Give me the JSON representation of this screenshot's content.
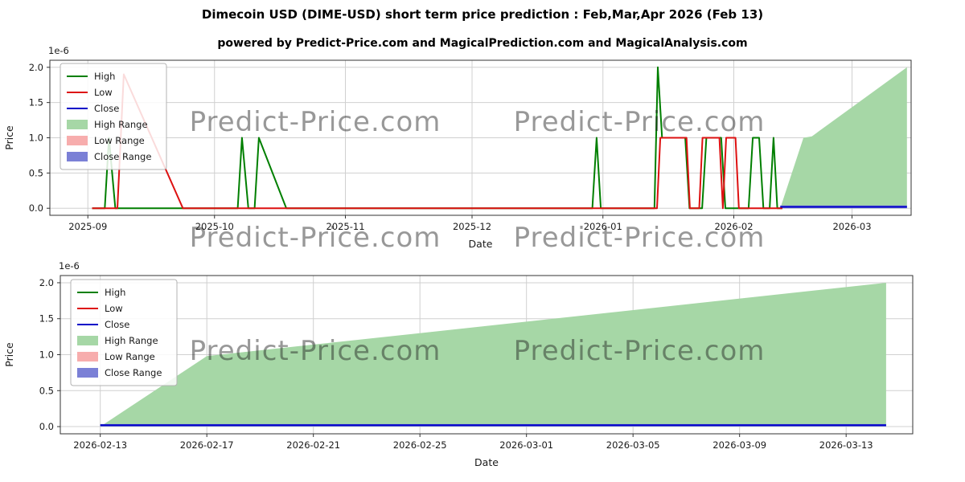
{
  "page": {
    "title": "Dimecoin USD (DIME-USD) short term price prediction : Feb,Mar,Apr 2026 (Feb 13)",
    "subtitle": "powered by Predict-Price.com and MagicalPrediction.com and MagicalAnalysis.com",
    "watermark": "Predict-Price.com"
  },
  "colors": {
    "high": "#007f00",
    "low": "#dd1111",
    "close": "#0000c8",
    "high_range": "#a6d7a6",
    "low_range": "#f7adad",
    "close_range": "#7b80d6",
    "grid": "#d0d0d0",
    "spine": "#333333",
    "watermark": "#9a9a9a"
  },
  "chart_data": [
    {
      "type": "line",
      "name": "history-and-prediction",
      "x_encoding": "days since 2025-08-23",
      "y_unit": "1e-6 USD",
      "xlabel": "Date",
      "ylabel": "Price",
      "offset_text": "1e-6",
      "grid": true,
      "legend_position": "upper left",
      "xlim": [
        0,
        204
      ],
      "ylim": [
        -0.1,
        2.1
      ],
      "yticks": [
        0,
        0.5,
        1,
        1.5,
        2
      ],
      "ytick_labels": [
        "0.0",
        "0.5",
        "1.0",
        "1.5",
        "2.0"
      ],
      "xticks": [
        {
          "v": 9,
          "label": "2025-09"
        },
        {
          "v": 39,
          "label": "2025-10"
        },
        {
          "v": 70,
          "label": "2025-11"
        },
        {
          "v": 100,
          "label": "2025-12"
        },
        {
          "v": 131,
          "label": "2026-01"
        },
        {
          "v": 162,
          "label": "2026-02"
        },
        {
          "v": 190,
          "label": "2026-03"
        }
      ],
      "legend": [
        "High",
        "Low",
        "Close",
        "High Range",
        "Low Range",
        "Close Range"
      ],
      "series": [
        {
          "name": "High",
          "kind": "line",
          "color": "high",
          "points": [
            [
              10,
              0
            ],
            [
              13,
              0
            ],
            [
              14,
              1
            ],
            [
              15.5,
              0
            ],
            [
              44.5,
              0
            ],
            [
              45.5,
              1
            ],
            [
              47,
              0
            ],
            [
              48.5,
              0
            ],
            [
              49.5,
              1
            ],
            [
              56,
              0
            ],
            [
              128.5,
              0
            ],
            [
              129.5,
              1
            ],
            [
              130.5,
              0
            ],
            [
              143.2,
              0
            ],
            [
              144,
              2
            ],
            [
              145,
              1
            ],
            [
              150.5,
              1
            ],
            [
              151.5,
              0
            ],
            [
              154.5,
              0
            ],
            [
              155.5,
              1
            ],
            [
              159,
              1
            ],
            [
              160,
              0
            ],
            [
              165.5,
              0
            ],
            [
              166.5,
              1
            ],
            [
              168,
              1
            ],
            [
              169,
              0
            ],
            [
              170.5,
              0
            ],
            [
              171.4,
              1
            ],
            [
              172.3,
              0
            ],
            [
              173.5,
              0
            ]
          ]
        },
        {
          "name": "Low",
          "kind": "line",
          "color": "low",
          "points": [
            [
              10,
              0
            ],
            [
              16,
              0
            ],
            [
              17.5,
              1.9
            ],
            [
              31.5,
              0
            ],
            [
              143.8,
              0
            ],
            [
              144.6,
              1
            ],
            [
              150.8,
              1
            ],
            [
              151.6,
              0
            ],
            [
              153.8,
              0
            ],
            [
              154.6,
              1
            ],
            [
              158.6,
              1
            ],
            [
              159.4,
              0
            ],
            [
              160.2,
              1
            ],
            [
              162.4,
              1
            ],
            [
              163.2,
              0
            ],
            [
              173.5,
              0
            ]
          ]
        },
        {
          "name": "Close",
          "kind": "line",
          "color": "close",
          "points": [
            [
              173,
              0.02
            ],
            [
              203,
              0.02
            ]
          ]
        },
        {
          "name": "High Range",
          "kind": "area",
          "color": "high_range",
          "points": [
            [
              173,
              0
            ],
            [
              178.5,
              1
            ],
            [
              180.5,
              1.02
            ],
            [
              203,
              2
            ]
          ]
        },
        {
          "name": "Low Range",
          "kind": "area",
          "color": "low_range",
          "points": [
            [
              173,
              0
            ],
            [
              203,
              0
            ]
          ]
        },
        {
          "name": "Close Range",
          "kind": "area",
          "color": "close_range",
          "points": [
            [
              173,
              0.04
            ],
            [
              203,
              0.04
            ]
          ]
        }
      ]
    },
    {
      "type": "area",
      "name": "prediction-detail",
      "x_encoding": "days since 2025-08-23",
      "y_unit": "1e-6 USD",
      "xlabel": "Date",
      "ylabel": "Price",
      "offset_text": "1e-6",
      "grid": true,
      "legend_position": "upper left",
      "xlim": [
        172.5,
        204.5
      ],
      "ylim": [
        -0.1,
        2.1
      ],
      "yticks": [
        0,
        0.5,
        1,
        1.5,
        2
      ],
      "ytick_labels": [
        "0.0",
        "0.5",
        "1.0",
        "1.5",
        "2.0"
      ],
      "xticks": [
        {
          "v": 174,
          "label": "2026-02-13"
        },
        {
          "v": 178,
          "label": "2026-02-17"
        },
        {
          "v": 182,
          "label": "2026-02-21"
        },
        {
          "v": 186,
          "label": "2026-02-25"
        },
        {
          "v": 190,
          "label": "2026-03-01"
        },
        {
          "v": 194,
          "label": "2026-03-05"
        },
        {
          "v": 198,
          "label": "2026-03-09"
        },
        {
          "v": 202,
          "label": "2026-03-13"
        }
      ],
      "legend": [
        "High",
        "Low",
        "Close",
        "High Range",
        "Low Range",
        "Close Range"
      ],
      "series": [
        {
          "name": "High",
          "kind": "line",
          "color": "high",
          "points": []
        },
        {
          "name": "Low",
          "kind": "line",
          "color": "low",
          "points": []
        },
        {
          "name": "Close",
          "kind": "line",
          "color": "close",
          "points": [
            [
              174,
              0.02
            ],
            [
              203.5,
              0.02
            ]
          ]
        },
        {
          "name": "High Range",
          "kind": "area",
          "color": "high_range",
          "points": [
            [
              174,
              0
            ],
            [
              178,
              0.98
            ],
            [
              203.5,
              2
            ]
          ]
        },
        {
          "name": "Low Range",
          "kind": "area",
          "color": "low_range",
          "points": [
            [
              174,
              0
            ],
            [
              203.5,
              0
            ]
          ]
        },
        {
          "name": "Close Range",
          "kind": "area",
          "color": "close_range",
          "points": [
            [
              174,
              0.035
            ],
            [
              203.5,
              0.035
            ]
          ]
        }
      ]
    }
  ]
}
